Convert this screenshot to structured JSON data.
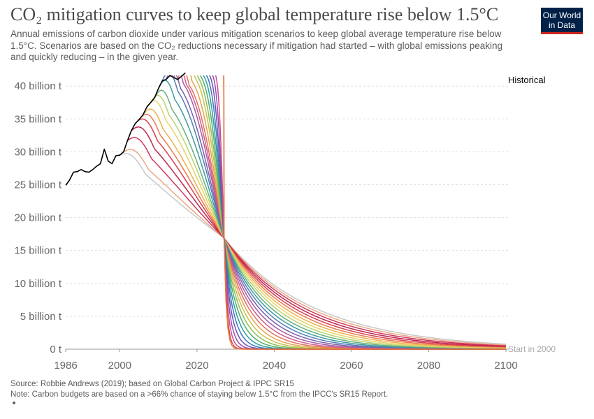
{
  "header": {
    "title": "CO₂ mitigation curves to keep global temperature rise below 1.5°C",
    "subtitle": "Annual emissions of carbon dioxide under various mitigation scenarios to keep global average temperature rise below 1.5°C. Scenarios are based on the CO₂ reductions necessary if mitigation had started – with global emissions peaking and quickly reducing – in the given year."
  },
  "logo": {
    "text": "Our World\nin Data",
    "bg": "#002147",
    "accent": "#ce261e"
  },
  "footer": {
    "source": "Source: Robbie Andrews (2019); based on Global Carbon Project & IPPC SR15",
    "note": "Note: Carbon budgets are based on a >66% chance of staying below 1.5°C from the IPCC's SR15 Report."
  },
  "chart_data": {
    "type": "line",
    "xlim": [
      1986,
      2100
    ],
    "ylim": [
      0,
      42
    ],
    "x_ticks": [
      1986,
      2000,
      2020,
      2040,
      2060,
      2080,
      2100
    ],
    "y_ticks": [
      {
        "value": 0,
        "label": "0 t"
      },
      {
        "value": 5,
        "label": "5 billion t"
      },
      {
        "value": 10,
        "label": "10 billion t"
      },
      {
        "value": 15,
        "label": "15 billion t"
      },
      {
        "value": 20,
        "label": "20 billion t"
      },
      {
        "value": 25,
        "label": "25 billion t"
      },
      {
        "value": 30,
        "label": "30 billion t"
      },
      {
        "value": 35,
        "label": "35 billion t"
      },
      {
        "value": 40,
        "label": "40 billion t"
      }
    ],
    "grid": true,
    "historical": {
      "name": "Historical",
      "color": "#000000",
      "x": [
        1986,
        1987,
        1988,
        1989,
        1990,
        1991,
        1992,
        1993,
        1994,
        1995,
        1996,
        1997,
        1998,
        1999,
        2000,
        2001,
        2002,
        2003,
        2004,
        2005,
        2006,
        2007,
        2008,
        2009,
        2010,
        2011,
        2012,
        2013,
        2014,
        2015,
        2016,
        2017
      ],
      "y": [
        24.9,
        25.7,
        26.9,
        27.0,
        27.3,
        27.0,
        26.9,
        27.3,
        27.8,
        28.2,
        30.4,
        28.6,
        28.2,
        29.4,
        29.5,
        30.0,
        31.7,
        33.2,
        34.3,
        34.9,
        35.6,
        36.8,
        37.5,
        38.2,
        39.6,
        40.8,
        41.0,
        41.6,
        41.3,
        41.0,
        41.5,
        42.0
      ]
    },
    "scenarios": {
      "start_years": [
        2000,
        2001,
        2002,
        2003,
        2004,
        2005,
        2006,
        2007,
        2008,
        2009,
        2010,
        2011,
        2012,
        2013,
        2014,
        2015,
        2016,
        2017,
        2018,
        2019,
        2020,
        2021,
        2022,
        2023,
        2024,
        2025,
        2026
      ],
      "end_label": "Start in 2000",
      "colors": [
        "#c8c8c8",
        "#e8a983",
        "#d2355f",
        "#b9274a",
        "#dc3d4d",
        "#e87a4f",
        "#f0b14a",
        "#e6d36a",
        "#b8d36c",
        "#66b07a",
        "#3e9c9c",
        "#4f7fb8",
        "#7b5fa8",
        "#a25ca8",
        "#d15a8a",
        "#e2705a",
        "#e8a04e",
        "#c9c34e",
        "#8ebf55",
        "#4fae6c",
        "#2f9e9e",
        "#3a78c0",
        "#6a54b4",
        "#9b4cb0",
        "#c94e8c",
        "#d94a4a",
        "#e27a3a"
      ]
    }
  }
}
